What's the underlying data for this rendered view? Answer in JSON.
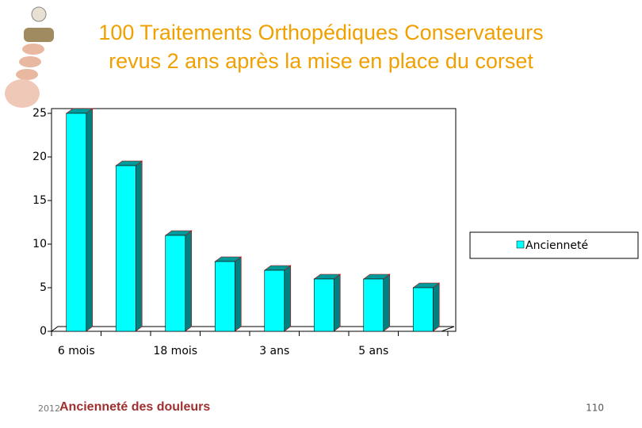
{
  "chart_data": {
    "type": "bar",
    "title": "100 Traitements Orthopédiques Conservateurs",
    "subtitle": "revus 2 ans après la mise en place du corset",
    "categories": [
      "6 mois",
      null,
      "18 mois",
      null,
      "3 ans",
      null,
      "5 ans",
      null
    ],
    "series": [
      {
        "name": "Ancienneté",
        "color": "#00ffff",
        "values": [
          25,
          19,
          11,
          8,
          7,
          6,
          6,
          5
        ]
      }
    ],
    "ylim": [
      0,
      25
    ],
    "yticks": [
      0,
      5,
      10,
      15,
      20,
      25
    ],
    "legend": "right"
  },
  "footer": {
    "year": "2012",
    "caption": "Ancienneté des douleurs",
    "page": "110"
  }
}
